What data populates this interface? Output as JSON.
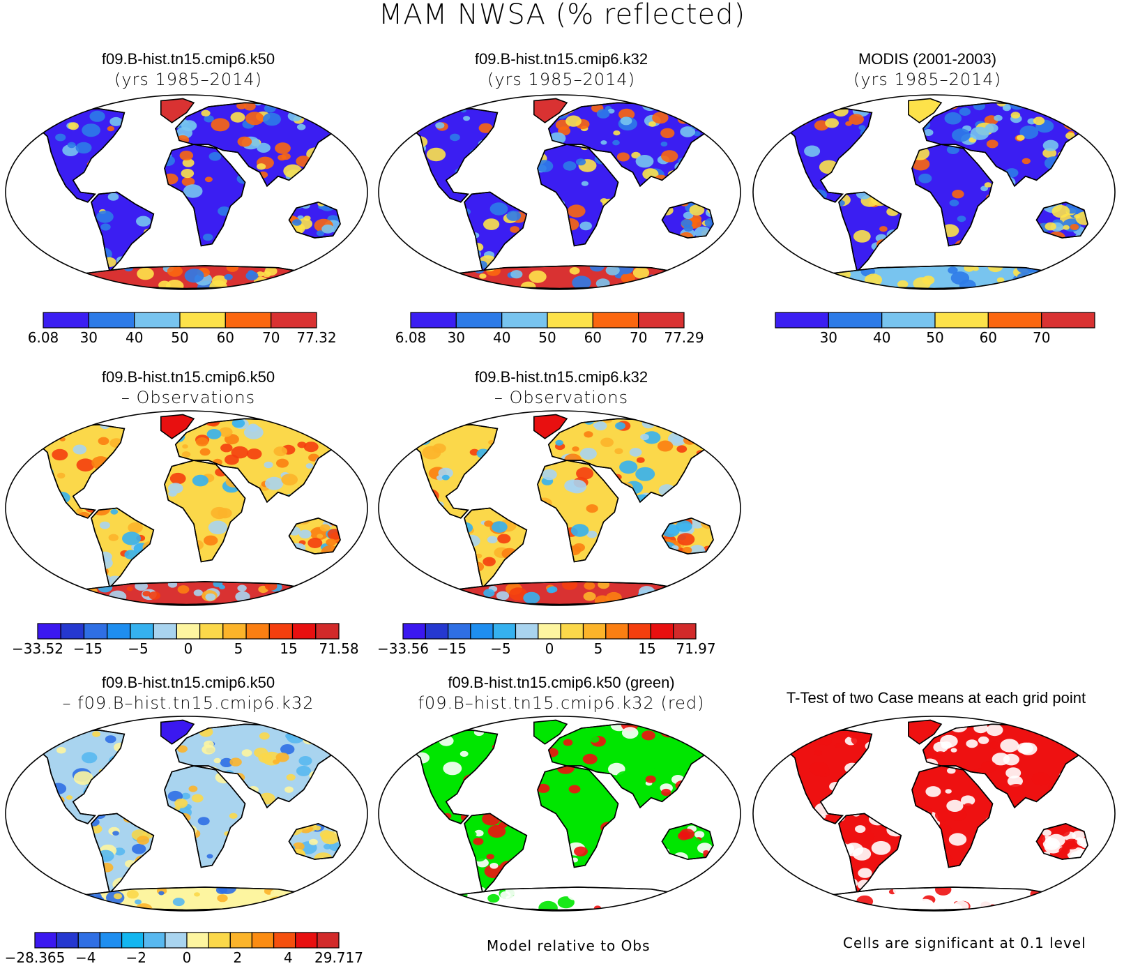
{
  "title": "MAM NWSA (% reflected)",
  "panels": [
    {
      "id": "p1",
      "line1": "f09.B-hist.tn15.cmip6.k50",
      "line2": "(yrs 1985–2014)",
      "kind": "abs",
      "antarctic": "red"
    },
    {
      "id": "p2",
      "line1": "f09.B-hist.tn15.cmip6.k32",
      "line2": "(yrs 1985–2014)",
      "kind": "abs",
      "antarctic": "red"
    },
    {
      "id": "p3",
      "line1": "MODIS (2001-2003)",
      "line2": "(yrs 1985–2014)",
      "kind": "obs",
      "antarctic": "mixed"
    },
    {
      "id": "p4",
      "line1": "f09.B-hist.tn15.cmip6.k50",
      "line2": "– Observations",
      "kind": "diff",
      "antarctic": "red"
    },
    {
      "id": "p5",
      "line1": "f09.B-hist.tn15.cmip6.k32",
      "line2": "– Observations",
      "kind": "diff",
      "antarctic": "red"
    },
    {
      "id": "p7",
      "line1": "f09.B-hist.tn15.cmip6.k50",
      "line2": "– f09.B–hist.tn15.cmip6.k32",
      "kind": "casediff",
      "antarctic": "pale"
    },
    {
      "id": "p8",
      "line1": "f09.B-hist.tn15.cmip6.k50 (green)",
      "line2": "f09.B–hist.tn15.cmip6.k32 (red)",
      "kind": "closer",
      "antarctic": "white"
    },
    {
      "id": "p9",
      "line1": "T-Test of two Case means at each grid point",
      "line2": "",
      "kind": "ttest",
      "antarctic": "white"
    }
  ],
  "colorbars": {
    "abs1": {
      "colors": [
        "#3b1ef2",
        "#2d7be8",
        "#78c4ef",
        "#fde24a",
        "#fb6710",
        "#d93232"
      ],
      "labels": [
        "6.08",
        "30",
        "40",
        "50",
        "60",
        "70",
        "77.32"
      ]
    },
    "abs2": {
      "colors": [
        "#3b1ef2",
        "#2d7be8",
        "#78c4ef",
        "#fde24a",
        "#fb6710",
        "#d93232"
      ],
      "labels": [
        "6.08",
        "30",
        "40",
        "50",
        "60",
        "70",
        "77.29"
      ]
    },
    "obs": {
      "colors": [
        "#3b1ef2",
        "#2d7be8",
        "#78c4ef",
        "#fde24a",
        "#fb6710",
        "#d93232"
      ],
      "labels": [
        "30",
        "40",
        "50",
        "60",
        "70"
      ]
    },
    "diff1": {
      "colors": [
        "#3b18f0",
        "#2538d0",
        "#2f6fe4",
        "#1e8ef0",
        "#35b1ef",
        "#a9d4ef",
        "#fdf5a0",
        "#fbd84a",
        "#fcb42a",
        "#fb7f12",
        "#f43f0e",
        "#e81010",
        "#d22a2a"
      ],
      "labels": [
        "−33.52",
        "−15",
        "−5",
        "0",
        "5",
        "15",
        "71.58"
      ]
    },
    "diff2": {
      "colors": [
        "#3b18f0",
        "#2538d0",
        "#2f6fe4",
        "#1e8ef0",
        "#35b1ef",
        "#a9d4ef",
        "#fdf5a0",
        "#fbd84a",
        "#fcb42a",
        "#fb7f12",
        "#f43f0e",
        "#e81010",
        "#d22a2a"
      ],
      "labels": [
        "−33.56",
        "−15",
        "−5",
        "0",
        "5",
        "15",
        "71.97"
      ]
    },
    "casediff": {
      "colors": [
        "#3b18f0",
        "#2538d0",
        "#2f6fe4",
        "#1e8ef0",
        "#12b6f0",
        "#58b8ef",
        "#a9d4ef",
        "#fdf5a0",
        "#fbd84a",
        "#fcb42a",
        "#fb8c12",
        "#f5500e",
        "#e81010",
        "#d22a2a"
      ],
      "labels": [
        "−28.365",
        "−4",
        "−2",
        "0",
        "2",
        "4",
        "29.717"
      ]
    }
  },
  "notes": {
    "model_relative": "Model relative to Obs",
    "significance": "Cells are significant at 0.1 level"
  }
}
